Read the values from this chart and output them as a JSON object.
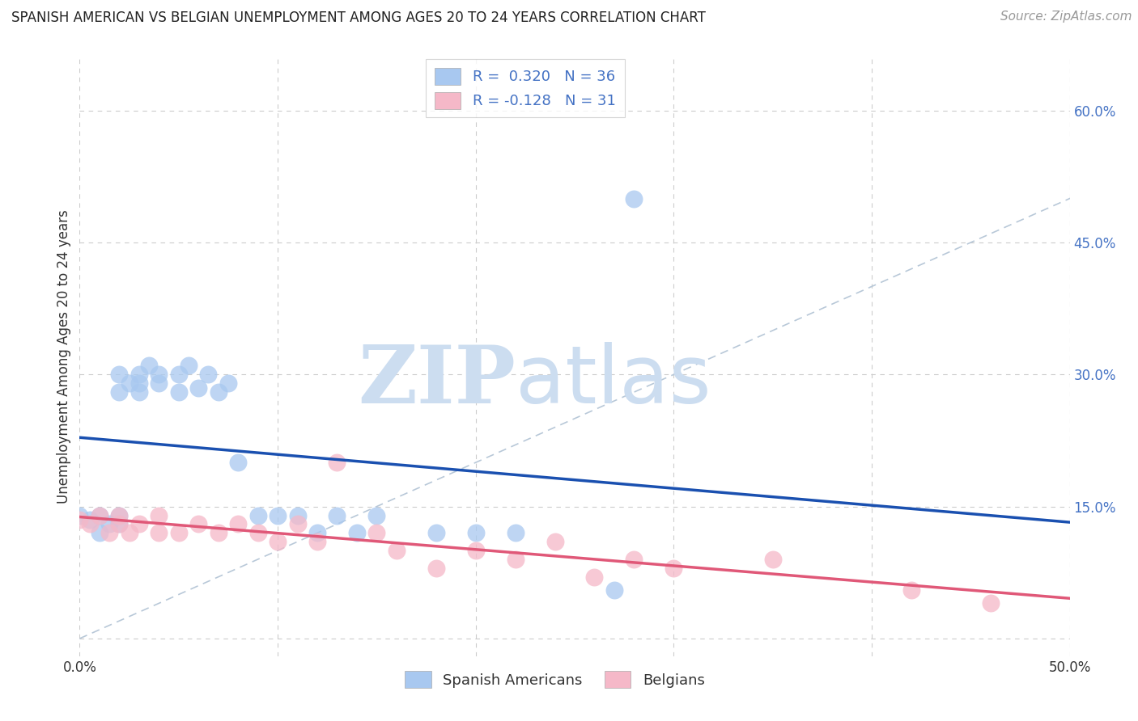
{
  "title": "SPANISH AMERICAN VS BELGIAN UNEMPLOYMENT AMONG AGES 20 TO 24 YEARS CORRELATION CHART",
  "source": "Source: ZipAtlas.com",
  "ylabel": "Unemployment Among Ages 20 to 24 years",
  "xlim": [
    0,
    0.5
  ],
  "ylim": [
    -0.02,
    0.66
  ],
  "ytick_positions": [
    0.0,
    0.15,
    0.3,
    0.45,
    0.6
  ],
  "ytick_labels_right": [
    "",
    "15.0%",
    "30.0%",
    "45.0%",
    "60.0%"
  ],
  "xtick_positions": [
    0.0,
    0.5
  ],
  "xtick_labels": [
    "0.0%",
    "50.0%"
  ],
  "legend_label1": "Spanish Americans",
  "legend_label2": "Belgians",
  "R1": 0.32,
  "N1": 36,
  "R2": -0.128,
  "N2": 31,
  "color_blue": "#a8c8f0",
  "color_pink": "#f5b8c8",
  "color_blue_line": "#1a50b0",
  "color_pink_line": "#e05878",
  "color_diag": "#b8c8d8",
  "watermark_zip": "ZIP",
  "watermark_atlas": "atlas",
  "watermark_color": "#ccddf0",
  "spanish_x": [
    0.0,
    0.005,
    0.01,
    0.01,
    0.015,
    0.02,
    0.02,
    0.02,
    0.02,
    0.025,
    0.03,
    0.03,
    0.03,
    0.035,
    0.04,
    0.04,
    0.05,
    0.05,
    0.055,
    0.06,
    0.065,
    0.07,
    0.075,
    0.08,
    0.09,
    0.1,
    0.11,
    0.12,
    0.13,
    0.14,
    0.15,
    0.18,
    0.2,
    0.22,
    0.27,
    0.28
  ],
  "spanish_y": [
    0.14,
    0.135,
    0.14,
    0.12,
    0.13,
    0.13,
    0.14,
    0.28,
    0.3,
    0.29,
    0.28,
    0.29,
    0.3,
    0.31,
    0.29,
    0.3,
    0.28,
    0.3,
    0.31,
    0.285,
    0.3,
    0.28,
    0.29,
    0.2,
    0.14,
    0.14,
    0.14,
    0.12,
    0.14,
    0.12,
    0.14,
    0.12,
    0.12,
    0.12,
    0.055,
    0.5
  ],
  "belgian_x": [
    0.0,
    0.005,
    0.01,
    0.015,
    0.02,
    0.02,
    0.025,
    0.03,
    0.04,
    0.04,
    0.05,
    0.06,
    0.07,
    0.08,
    0.09,
    0.1,
    0.11,
    0.12,
    0.13,
    0.15,
    0.16,
    0.18,
    0.2,
    0.22,
    0.24,
    0.26,
    0.28,
    0.3,
    0.35,
    0.42,
    0.46
  ],
  "belgian_y": [
    0.135,
    0.13,
    0.14,
    0.12,
    0.13,
    0.14,
    0.12,
    0.13,
    0.12,
    0.14,
    0.12,
    0.13,
    0.12,
    0.13,
    0.12,
    0.11,
    0.13,
    0.11,
    0.2,
    0.12,
    0.1,
    0.08,
    0.1,
    0.09,
    0.11,
    0.07,
    0.09,
    0.08,
    0.09,
    0.055,
    0.04
  ],
  "title_fontsize": 12,
  "axis_label_fontsize": 12,
  "tick_fontsize": 12,
  "source_fontsize": 11
}
